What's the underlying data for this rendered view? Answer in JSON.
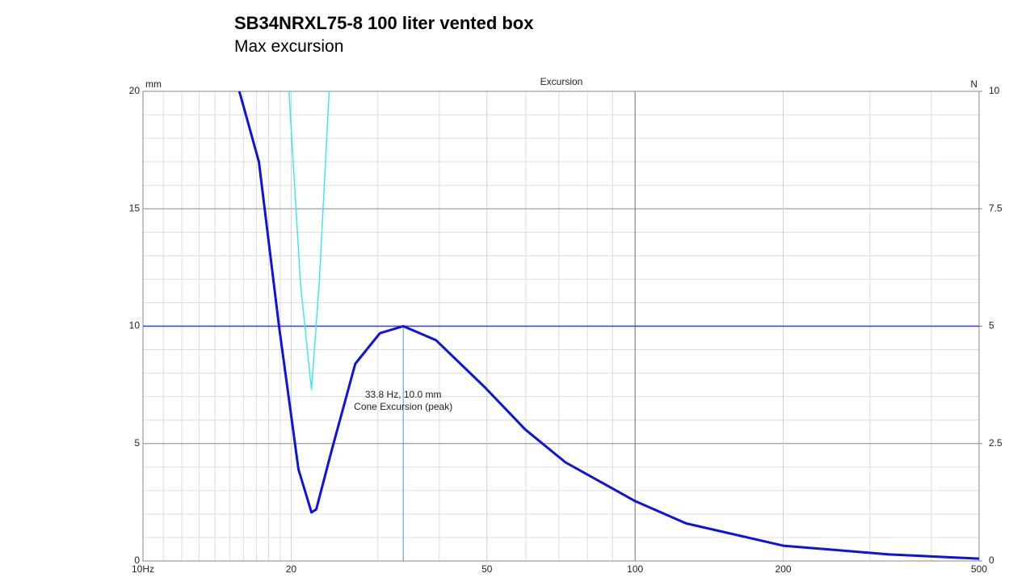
{
  "header": {
    "title": "SB34NRXL75-8  100 liter vented box",
    "subtitle": "Max excursion"
  },
  "chart_data": {
    "type": "line",
    "title": "Excursion",
    "y_unit": "mm",
    "y2_unit": "N",
    "xlog": true,
    "xlim": [
      10,
      500
    ],
    "ylim": [
      0,
      20
    ],
    "y2lim": [
      0,
      10
    ],
    "xticks": [
      {
        "value": 10,
        "label": "10Hz"
      },
      20,
      50,
      100,
      200,
      500
    ],
    "yticks": [
      0,
      5,
      10,
      15,
      20
    ],
    "y2ticks": [
      0,
      2.5,
      5,
      7.5,
      10
    ],
    "xgrid": [
      11,
      12,
      13,
      14,
      15,
      16,
      17,
      18,
      19,
      30,
      40,
      60,
      70,
      80,
      90,
      300,
      400
    ],
    "xmajor_grid": [
      100
    ],
    "ygrid": [
      1,
      2,
      3,
      4,
      6,
      7,
      8,
      9,
      11,
      12,
      13,
      14,
      16,
      17,
      18,
      19
    ],
    "hline": {
      "value": 10,
      "color": "#3040d0"
    },
    "cursor": {
      "x": 33.8,
      "y": 10.0,
      "label": "33.8 Hz, 10.0 mm",
      "text": "Cone Excursion (peak)",
      "color": "#4a9ad8"
    },
    "series": [
      {
        "color": "#1010e0",
        "x": [
          15.7,
          17.2,
          18.9,
          20.7,
          22.0,
          22.5,
          24.1,
          27.0,
          30.3,
          33.8,
          39.4,
          49.5,
          59.8,
          72.2,
          100,
          127,
          200,
          328,
          500
        ],
        "values": [
          20,
          17.0,
          10.0,
          3.9,
          2.07,
          2.2,
          4.6,
          8.4,
          9.7,
          10.0,
          9.4,
          7.4,
          5.6,
          4.2,
          2.55,
          1.6,
          0.65,
          0.28,
          0.1
        ]
      },
      {
        "color": "#40e8e8",
        "x": [
          19.8,
          20.9,
          22.0,
          22.8,
          23.9
        ],
        "values": [
          20,
          11.8,
          7.3,
          11.8,
          20
        ]
      }
    ]
  }
}
